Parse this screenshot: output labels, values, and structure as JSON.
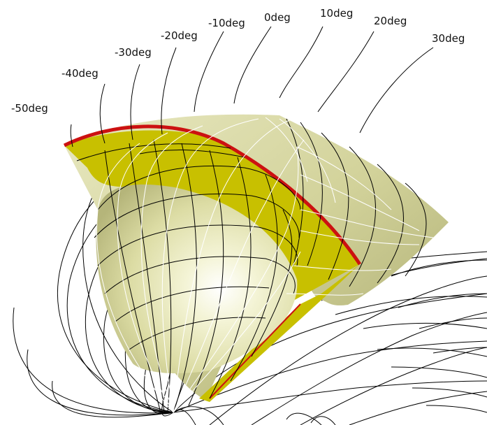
{
  "labels": [
    "-50deg",
    "-40deg",
    "-30deg",
    "-20deg",
    "-10deg",
    "0deg",
    "10deg",
    "20deg",
    "30deg"
  ],
  "colors": {
    "background": "#ffffff",
    "surface_light": "#f4f4d4",
    "surface_mid": "#d6d69a",
    "surface_dark": "#a8a86a",
    "cut_face": "#c8c000",
    "red_edge": "#cc1111",
    "field_line_black": "#000000",
    "field_line_white": "#ffffff"
  }
}
